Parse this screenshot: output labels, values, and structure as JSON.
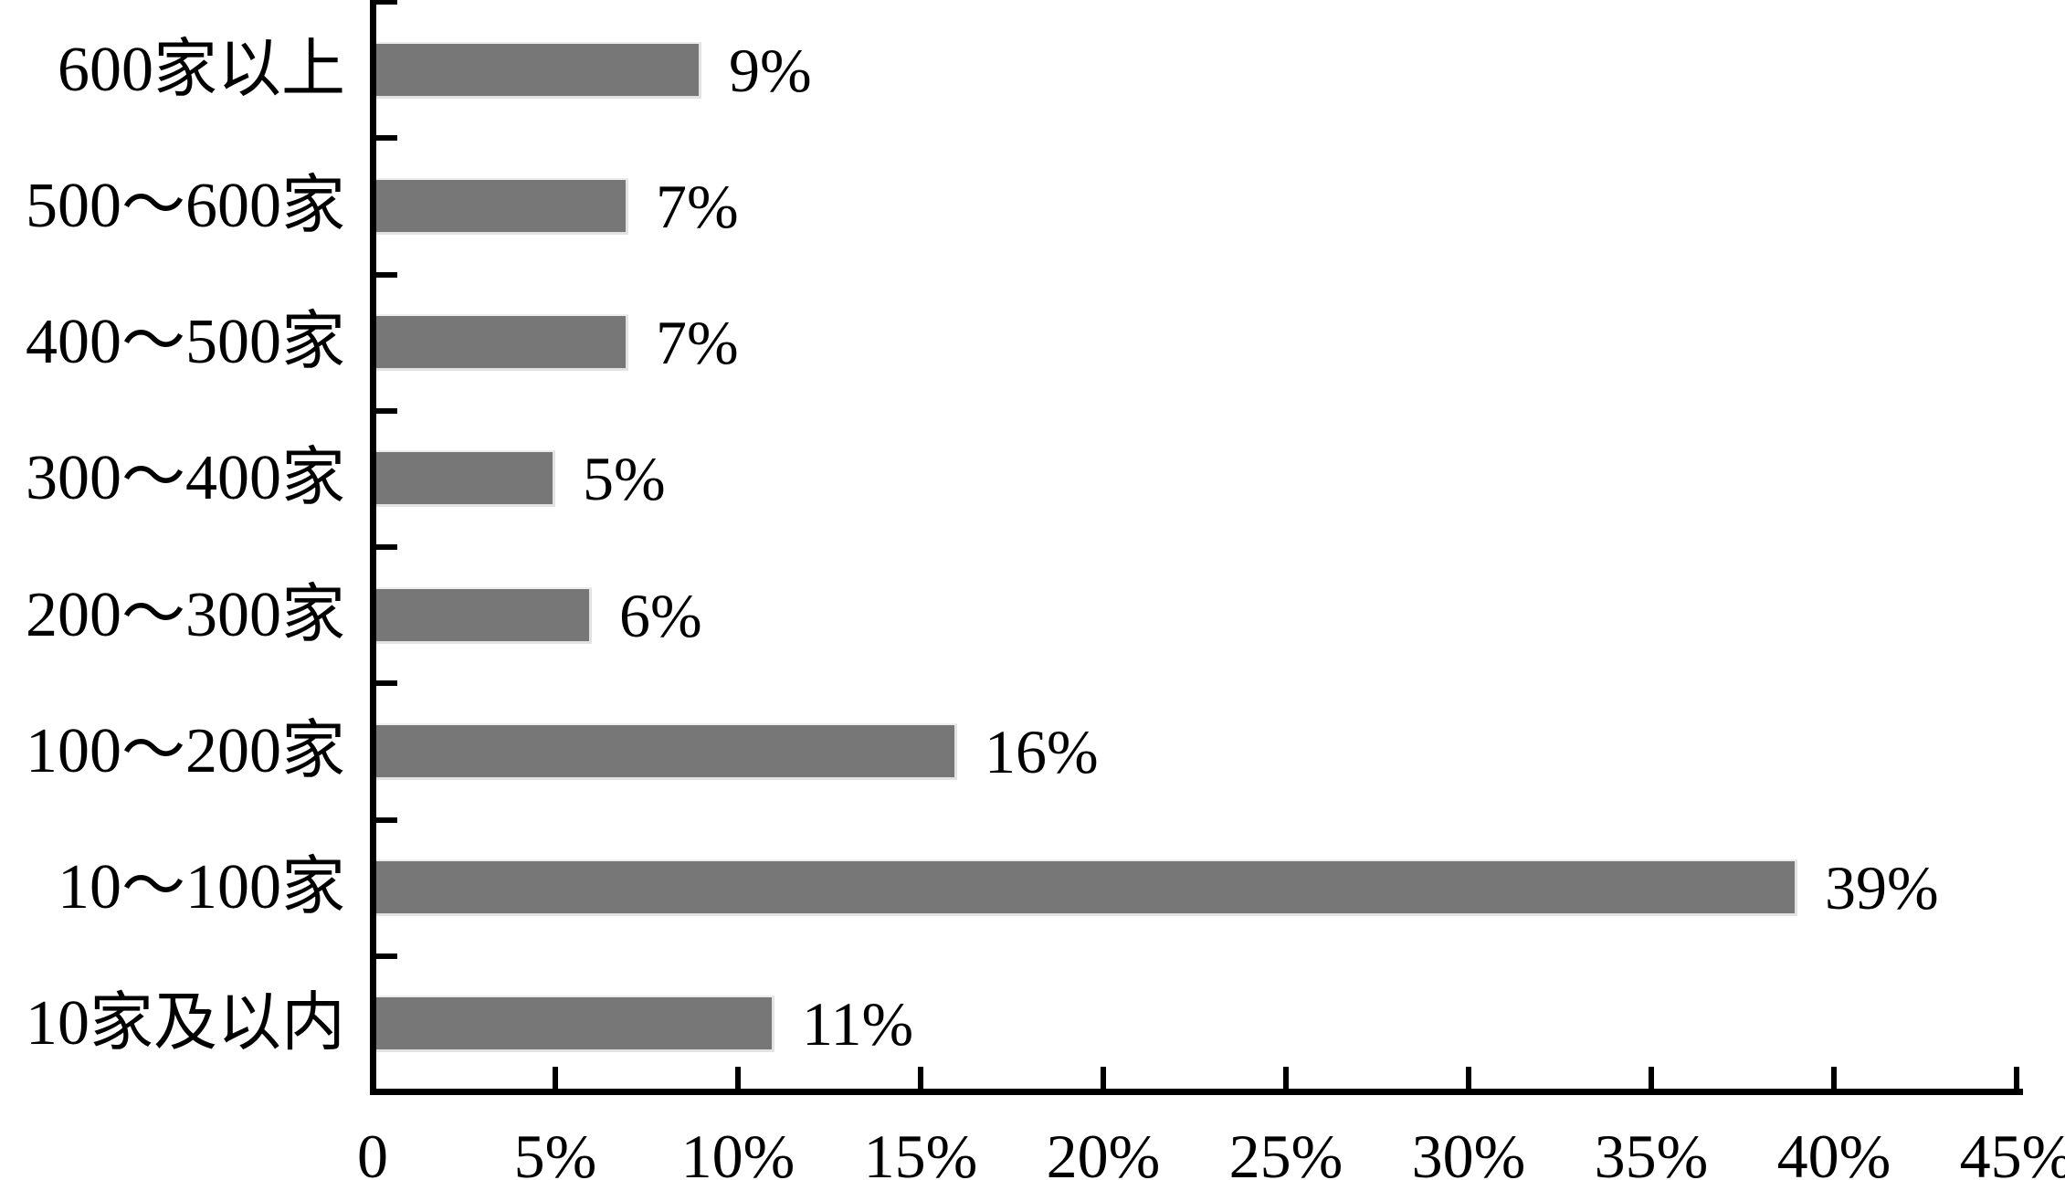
{
  "chart_data": {
    "type": "bar",
    "orientation": "horizontal",
    "title": "",
    "xlabel": "",
    "ylabel": "",
    "categories": [
      "600家以上",
      "500～600家",
      "400～500家",
      "300～400家",
      "200～300家",
      "100～200家",
      "10～100家",
      "10家及以内"
    ],
    "values": [
      9,
      7,
      7,
      5,
      6,
      16,
      39,
      11
    ],
    "value_labels": [
      "9%",
      "7%",
      "7%",
      "5%",
      "6%",
      "16%",
      "39%",
      "11%"
    ],
    "x_tick_labels": [
      "0",
      "5%",
      "10%",
      "15%",
      "20%",
      "25%",
      "30%",
      "35%",
      "40%",
      "45%"
    ],
    "xlim": [
      0,
      45
    ],
    "x_tick_step": 5,
    "grid": "off",
    "legend": "none",
    "bar_color": "#777777",
    "bar_edge_color": "#e3e3e3",
    "axis_color": "#000000",
    "text_color": "#000000",
    "background_color": "#ffffff"
  }
}
